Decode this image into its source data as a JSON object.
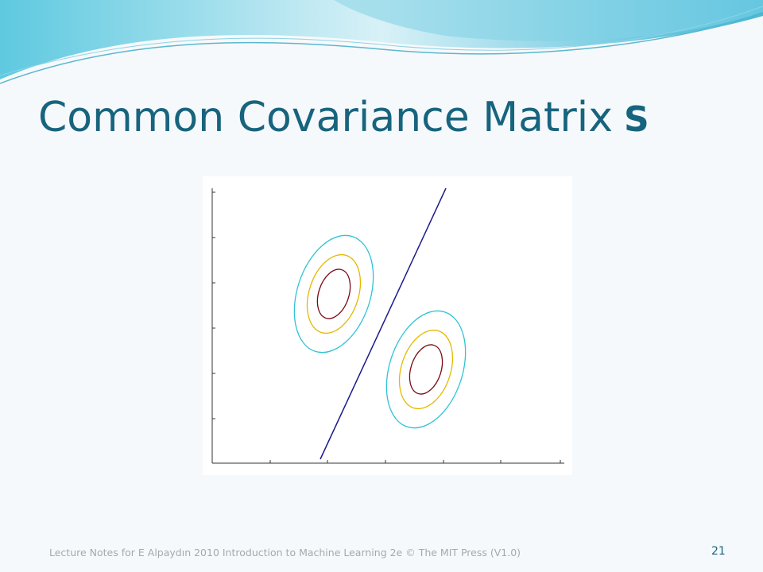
{
  "title": {
    "text": "Common Covariance Matrix",
    "symbol": "S"
  },
  "footer": {
    "text": "Lecture Notes for E Alpaydın 2010 Introduction to Machine Learning 2e © The MIT Press (V1.0)",
    "page": "21"
  }
}
